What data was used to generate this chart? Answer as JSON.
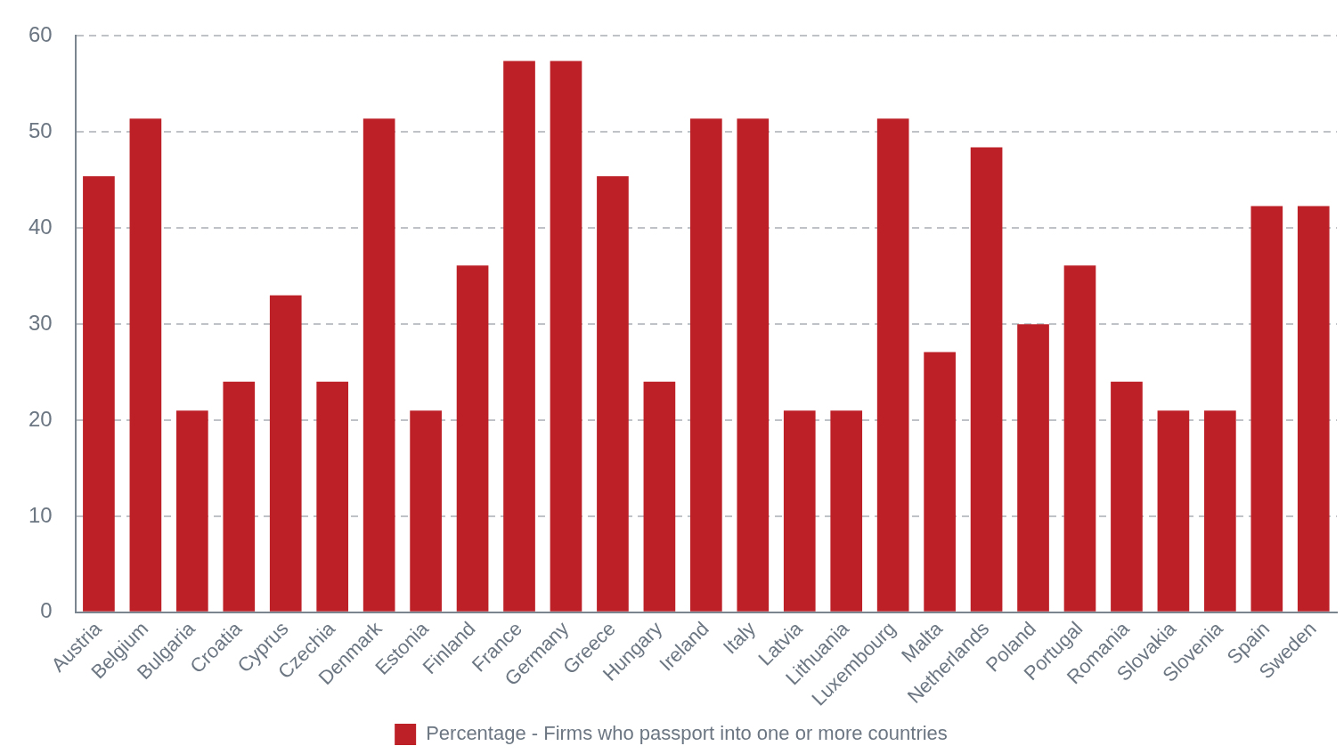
{
  "chart_data": {
    "type": "bar",
    "categories": [
      "Austria",
      "Belgium",
      "Bulgaria",
      "Croatia",
      "Cyprus",
      "Czechia",
      "Denmark",
      "Estonia",
      "Finland",
      "France",
      "Germany",
      "Greece",
      "Hungary",
      "Ireland",
      "Italy",
      "Latvia",
      "Lithuania",
      "Luxembourg",
      "Malta",
      "Netherlands",
      "Poland",
      "Portugal",
      "Romania",
      "Slovakia",
      "Slovenia",
      "Spain",
      "Sweden"
    ],
    "series": [
      {
        "name": "Percentage - Firms who passport into one or more countries",
        "color": "#bd2027",
        "values": [
          45.4,
          51.4,
          21,
          24,
          33,
          24,
          51.4,
          21,
          36.1,
          57.4,
          57.4,
          45.4,
          24,
          51.4,
          51.4,
          21,
          21,
          51.4,
          27.1,
          48.4,
          30,
          36.1,
          24,
          21,
          21,
          42.3,
          42.3
        ]
      }
    ],
    "ylim": [
      0,
      60
    ],
    "yticks": [
      0,
      10,
      20,
      30,
      40,
      50,
      60
    ],
    "grid": "y",
    "legend": "bottom"
  }
}
